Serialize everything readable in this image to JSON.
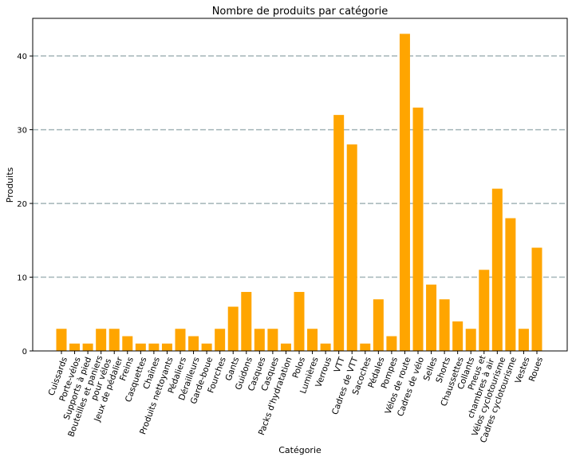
{
  "chart_data": {
    "type": "bar",
    "title": "Nombre de produits par catégorie",
    "xlabel": "Catégorie",
    "ylabel": "Produits",
    "ylim": [
      0,
      45
    ],
    "yticks": [
      0,
      10,
      20,
      30,
      40
    ],
    "grid": "y dashed",
    "bar_color": "#FFA500",
    "grid_color": "#A3B5B8",
    "categories": [
      "Cuissards",
      "Porte-vélos",
      "Supports à pied",
      "Bouteilles et paniers\npour vélos",
      "Jeux de pédalier",
      "Freins",
      "Casquettes",
      "Chaînes",
      "Produits nettoyants",
      "Pédaliers",
      "Dérailleurs",
      "Garde-boue",
      "Fourches",
      "Gants",
      "Guidons",
      "Casques",
      "Casques",
      "Packs d'hydratation",
      "Polos",
      "Lumières",
      "Verrous",
      "VTT",
      "Cadres de VTT",
      "Sacoches",
      "Pédales",
      "Pompes",
      "Vélos de route",
      "Cadres de vélo",
      "Selles",
      "Shorts",
      "Chaussettes",
      "Collants",
      "Pneus et\nchambres à air",
      "Vélos cyclotourisme",
      "Cadres cyclotourisme",
      "Vestes",
      "Roues"
    ],
    "values": [
      3,
      1,
      1,
      3,
      3,
      2,
      1,
      1,
      1,
      3,
      2,
      1,
      3,
      6,
      8,
      3,
      3,
      1,
      8,
      3,
      1,
      32,
      28,
      1,
      7,
      2,
      43,
      33,
      9,
      7,
      4,
      3,
      11,
      22,
      18,
      3,
      14
    ]
  }
}
